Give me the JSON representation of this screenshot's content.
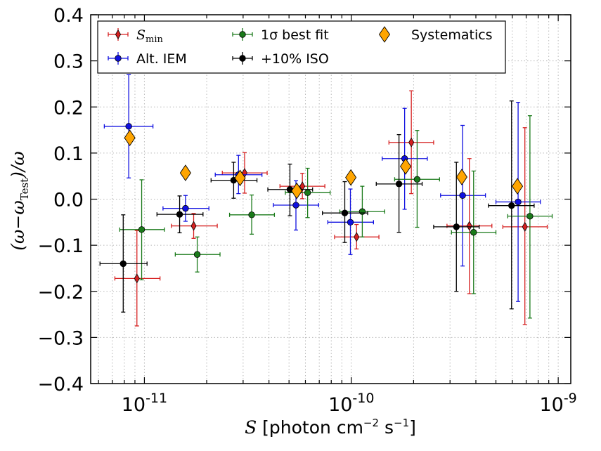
{
  "chart_data": {
    "type": "scatter",
    "title": "",
    "xscale": "log",
    "xlim": [
      5.5e-12,
      1.15e-09
    ],
    "ylim": [
      -0.4,
      0.4
    ],
    "grid": true,
    "legend_position": "top",
    "x_ticks": [
      {
        "value": 1e-11,
        "base": "10",
        "exp": "-11"
      },
      {
        "value": 1e-10,
        "base": "10",
        "exp": "-10"
      },
      {
        "value": 1e-09,
        "base": "10",
        "exp": "-9"
      }
    ],
    "y_ticks": [
      {
        "value": 0.4,
        "label": "0.4"
      },
      {
        "value": 0.3,
        "label": "0.3"
      },
      {
        "value": 0.2,
        "label": "0.2"
      },
      {
        "value": 0.1,
        "label": "0.1"
      },
      {
        "value": 0.0,
        "label": "0.0"
      },
      {
        "value": -0.1,
        "label": "−0.1"
      },
      {
        "value": -0.2,
        "label": "−0.2"
      },
      {
        "value": -0.3,
        "label": "−0.3"
      },
      {
        "value": -0.4,
        "label": "−0.4"
      }
    ],
    "xlabel": {
      "symbol": "S",
      "text": " [photon cm",
      "sup1": "−2",
      "mid": " s",
      "sup2": "−1",
      "end": "]"
    },
    "ylabel": {
      "open": "(ω−ω",
      "sub": "Test",
      "close": ")/ω"
    },
    "series": [
      {
        "name": "S_min",
        "legend_label": "S",
        "legend_sub": "min",
        "color": "#d62020",
        "marker": "thin-diamond",
        "points": [
          {
            "x": 9.2e-12,
            "y": -0.172,
            "xlo": 7.2e-12,
            "xhi": 1.19e-11,
            "ylo": -0.275,
            "yhi": -0.068
          },
          {
            "x": 1.73e-11,
            "y": -0.058,
            "xlo": 1.35e-11,
            "xhi": 2.25e-11,
            "ylo": -0.085,
            "yhi": -0.031
          },
          {
            "x": 3.05e-11,
            "y": 0.057,
            "xlo": 2.38e-11,
            "xhi": 3.92e-11,
            "ylo": 0.013,
            "yhi": 0.101
          },
          {
            "x": 5.8e-11,
            "y": 0.028,
            "xlo": 4.52e-11,
            "xhi": 7.45e-11,
            "ylo": 0.001,
            "yhi": 0.056
          },
          {
            "x": 1.06e-10,
            "y": -0.082,
            "xlo": 8.3e-11,
            "xhi": 1.36e-10,
            "ylo": -0.108,
            "yhi": -0.055
          },
          {
            "x": 1.95e-10,
            "y": 0.123,
            "xlo": 1.52e-10,
            "xhi": 2.5e-10,
            "ylo": 0.012,
            "yhi": 0.235
          },
          {
            "x": 3.72e-10,
            "y": -0.058,
            "xlo": 2.9e-10,
            "xhi": 4.78e-10,
            "ylo": -0.205,
            "yhi": 0.088
          },
          {
            "x": 6.9e-10,
            "y": -0.06,
            "xlo": 5.4e-10,
            "xhi": 8.85e-10,
            "ylo": -0.272,
            "yhi": 0.155
          }
        ]
      },
      {
        "name": "Alt. IEM",
        "legend_label": "Alt. IEM",
        "color": "#1010e0",
        "marker": "circle",
        "points": [
          {
            "x": 8.4e-12,
            "y": 0.158,
            "xlo": 6.4e-12,
            "xhi": 1.1e-11,
            "ylo": 0.046,
            "yhi": 0.27
          },
          {
            "x": 1.58e-11,
            "y": -0.02,
            "xlo": 1.23e-11,
            "xhi": 2.05e-11,
            "ylo": -0.048,
            "yhi": 0.008
          },
          {
            "x": 2.85e-11,
            "y": 0.053,
            "xlo": 2.2e-11,
            "xhi": 3.7e-11,
            "ylo": 0.012,
            "yhi": 0.095
          },
          {
            "x": 5.4e-11,
            "y": -0.013,
            "xlo": 4.2e-11,
            "xhi": 6.95e-11,
            "ylo": -0.067,
            "yhi": 0.04
          },
          {
            "x": 9.9e-11,
            "y": -0.05,
            "xlo": 7.7e-11,
            "xhi": 1.28e-10,
            "ylo": -0.12,
            "yhi": 0.022
          },
          {
            "x": 1.81e-10,
            "y": 0.088,
            "xlo": 1.41e-10,
            "xhi": 2.33e-10,
            "ylo": -0.022,
            "yhi": 0.197
          },
          {
            "x": 3.45e-10,
            "y": 0.008,
            "xlo": 2.7e-10,
            "xhi": 4.45e-10,
            "ylo": -0.145,
            "yhi": 0.16
          },
          {
            "x": 6.4e-10,
            "y": -0.006,
            "xlo": 5e-10,
            "xhi": 8.2e-10,
            "ylo": -0.222,
            "yhi": 0.21
          }
        ]
      },
      {
        "name": "1σ best fit",
        "legend_label": "1σ best fit",
        "color": "#1a7a1a",
        "marker": "circle",
        "points": [
          {
            "x": 9.7e-12,
            "y": -0.066,
            "xlo": 7.6e-12,
            "xhi": 1.25e-11,
            "ylo": -0.175,
            "yhi": 0.042
          },
          {
            "x": 1.8e-11,
            "y": -0.12,
            "xlo": 1.41e-11,
            "xhi": 2.32e-11,
            "ylo": -0.158,
            "yhi": -0.082
          },
          {
            "x": 3.3e-11,
            "y": -0.034,
            "xlo": 2.58e-11,
            "xhi": 4.25e-11,
            "ylo": -0.076,
            "yhi": 0.009
          },
          {
            "x": 6.15e-11,
            "y": 0.014,
            "xlo": 4.8e-11,
            "xhi": 7.9e-11,
            "ylo": -0.04,
            "yhi": 0.067
          },
          {
            "x": 1.13e-10,
            "y": -0.027,
            "xlo": 8.8e-11,
            "xhi": 1.45e-10,
            "ylo": -0.082,
            "yhi": 0.028
          },
          {
            "x": 2.08e-10,
            "y": 0.043,
            "xlo": 1.62e-10,
            "xhi": 2.67e-10,
            "ylo": -0.061,
            "yhi": 0.149
          },
          {
            "x": 3.9e-10,
            "y": -0.072,
            "xlo": 3.05e-10,
            "xhi": 5e-10,
            "ylo": -0.205,
            "yhi": 0.061
          },
          {
            "x": 7.3e-10,
            "y": -0.037,
            "xlo": 5.7e-10,
            "xhi": 9.35e-10,
            "ylo": -0.258,
            "yhi": 0.181
          }
        ]
      },
      {
        "name": "+10% ISO",
        "legend_label": "+10% ISO",
        "color": "#000000",
        "marker": "circle",
        "points": [
          {
            "x": 7.9e-12,
            "y": -0.14,
            "xlo": 6.1e-12,
            "xhi": 1.03e-11,
            "ylo": -0.245,
            "yhi": -0.034
          },
          {
            "x": 1.48e-11,
            "y": -0.033,
            "xlo": 1.15e-11,
            "xhi": 1.92e-11,
            "ylo": -0.073,
            "yhi": 0.007
          },
          {
            "x": 2.7e-11,
            "y": 0.041,
            "xlo": 2.1e-11,
            "xhi": 3.5e-11,
            "ylo": 0.002,
            "yhi": 0.08
          },
          {
            "x": 5.05e-11,
            "y": 0.021,
            "xlo": 3.95e-11,
            "xhi": 6.5e-11,
            "ylo": -0.036,
            "yhi": 0.076
          },
          {
            "x": 9.3e-11,
            "y": -0.03,
            "xlo": 7.25e-11,
            "xhi": 1.2e-10,
            "ylo": -0.094,
            "yhi": 0.038
          },
          {
            "x": 1.7e-10,
            "y": 0.033,
            "xlo": 1.32e-10,
            "xhi": 2.2e-10,
            "ylo": -0.072,
            "yhi": 0.14
          },
          {
            "x": 3.22e-10,
            "y": -0.06,
            "xlo": 2.5e-10,
            "xhi": 4.15e-10,
            "ylo": -0.2,
            "yhi": 0.08
          },
          {
            "x": 5.95e-10,
            "y": -0.014,
            "xlo": 4.6e-10,
            "xhi": 7.65e-10,
            "ylo": -0.238,
            "yhi": 0.213
          }
        ]
      },
      {
        "name": "Systematics",
        "legend_label": "Systematics",
        "color": "#ffa500",
        "marker": "diamond",
        "points": [
          {
            "x": 8.5e-12,
            "y": 0.133
          },
          {
            "x": 1.58e-11,
            "y": 0.057
          },
          {
            "x": 2.9e-11,
            "y": 0.046
          },
          {
            "x": 5.45e-11,
            "y": 0.018
          },
          {
            "x": 9.95e-11,
            "y": 0.047
          },
          {
            "x": 1.83e-10,
            "y": 0.071
          },
          {
            "x": 3.42e-10,
            "y": 0.048
          },
          {
            "x": 6.35e-10,
            "y": 0.028
          }
        ]
      }
    ]
  }
}
